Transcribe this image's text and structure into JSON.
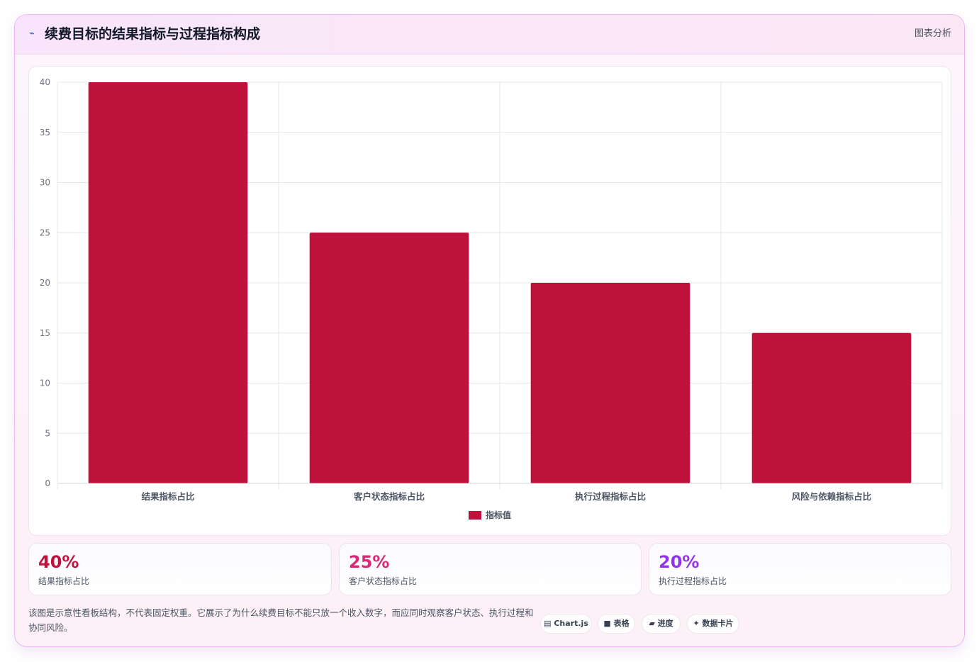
{
  "header": {
    "icon": "trend-line-icon",
    "title": "续费目标的结果指标与过程指标构成",
    "tag": "图表分析"
  },
  "chart_data": {
    "type": "bar",
    "categories": [
      "结果指标占比",
      "客户状态指标占比",
      "执行过程指标占比",
      "风险与依赖指标占比"
    ],
    "series": [
      {
        "name": "指标值",
        "values": [
          40,
          25,
          20,
          15
        ],
        "color": "#be123c"
      }
    ],
    "ylim": [
      0,
      40
    ],
    "yticks": [
      0,
      5,
      10,
      15,
      20,
      25,
      30,
      35,
      40
    ],
    "grid": true,
    "legend": "bottom"
  },
  "stats": [
    {
      "value": "40%",
      "label": "结果指标占比",
      "color": "#be123c"
    },
    {
      "value": "25%",
      "label": "客户状态指标占比",
      "color": "#db2777"
    },
    {
      "value": "20%",
      "label": "执行过程指标占比",
      "color": "#9333ea"
    }
  ],
  "note": "该图是示意性看板结构，不代表固定权重。它展示了为什么续费目标不能只放一个收入数字，而应同时观察客户状态、执行过程和协同风险。",
  "chips": [
    {
      "icon": "chart-icon",
      "glyph": "▤",
      "label": "Chart.js"
    },
    {
      "icon": "table-icon",
      "glyph": "■",
      "label": "表格"
    },
    {
      "icon": "progress-icon",
      "glyph": "▰",
      "label": "进度"
    },
    {
      "icon": "sparkle-icon",
      "glyph": "✦",
      "label": "数据卡片"
    }
  ]
}
